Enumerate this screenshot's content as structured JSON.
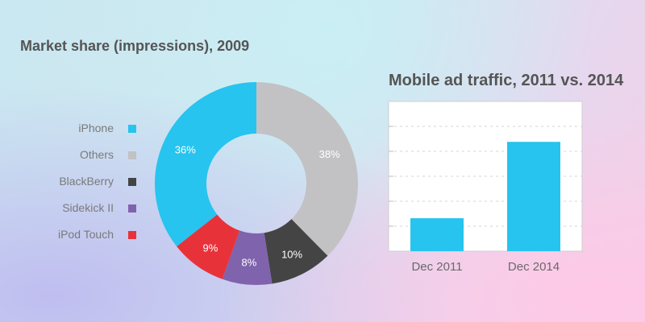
{
  "chart_data": [
    {
      "type": "pie",
      "style": "donut",
      "title": "Market share (impressions), 2009",
      "slices": [
        {
          "label": "iPhone",
          "value": 36,
          "text": "36%",
          "color": "#26c4ee"
        },
        {
          "label": "Others",
          "value": 38,
          "text": "38%",
          "color": "#c2c2c4"
        },
        {
          "label": "BlackBerry",
          "value": 10,
          "text": "10%",
          "color": "#444444"
        },
        {
          "label": "Sidekick II",
          "value": 8,
          "text": "8%",
          "color": "#7f63ad"
        },
        {
          "label": "iPod Touch",
          "value": 9,
          "text": "9%",
          "color": "#e8323a"
        }
      ],
      "legend_placement": "left"
    },
    {
      "type": "bar",
      "title": "Mobile ad traffic, 2011 vs. 2014",
      "categories": [
        "Dec 2011",
        "Dec 2014"
      ],
      "values": [
        22,
        73
      ],
      "ylim": [
        0,
        100
      ],
      "grid": true,
      "color": "#26c4ee"
    }
  ]
}
